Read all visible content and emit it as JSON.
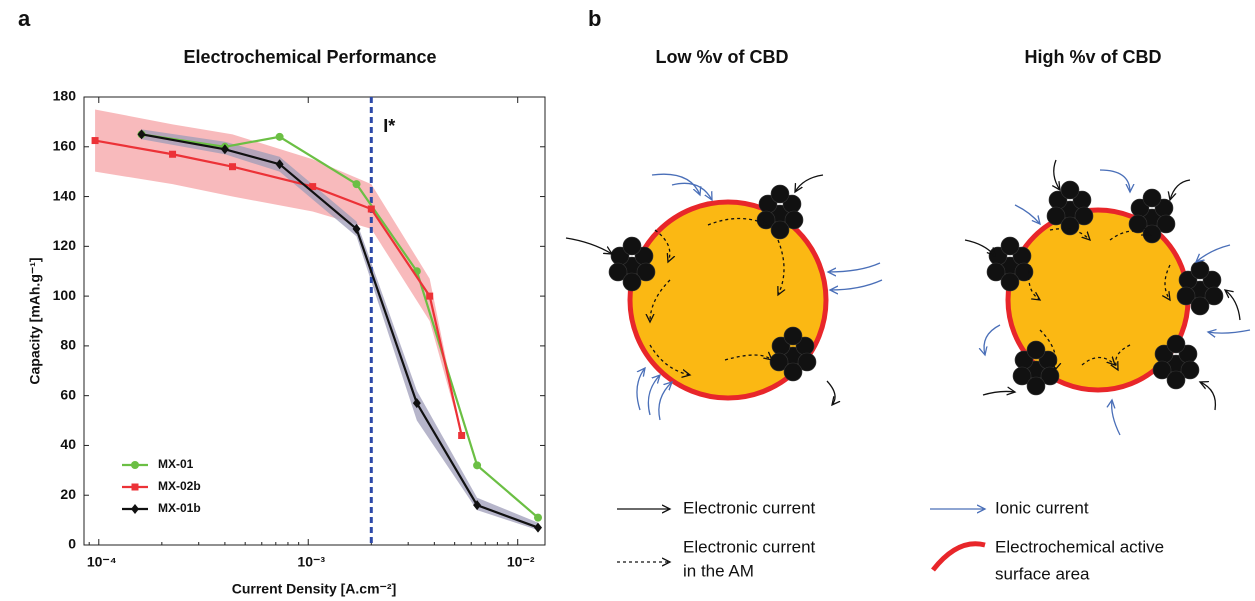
{
  "chart_data": {
    "type": "line",
    "panel_label": "a",
    "title": "Electrochemical Performance",
    "x_label": "Current Density [A.cm⁻²]",
    "y_label": "Capacity [mAh.g⁻¹]",
    "log_x": true,
    "xlim": [
      8.5e-05,
      0.0135
    ],
    "xticks": [
      {
        "value": 0.0001,
        "label": "10⁻⁴"
      },
      {
        "value": 0.001,
        "label": "10⁻³"
      },
      {
        "value": 0.01,
        "label": "10⁻²"
      }
    ],
    "ylim": [
      0,
      180
    ],
    "yticks": [
      0,
      20,
      40,
      60,
      80,
      100,
      120,
      140,
      160,
      180
    ],
    "legend": "lower left",
    "vline": {
      "x": 0.002,
      "label": "I*",
      "color": "#2e4aa8"
    },
    "series": [
      {
        "name": "MX-01",
        "color": "#6bbf44",
        "marker": "circle",
        "x": [
          0.00016,
          0.0004,
          0.00073,
          0.0017,
          0.0033,
          0.0064,
          0.0125
        ],
        "values": [
          165,
          160,
          164,
          145,
          110,
          32,
          11
        ]
      },
      {
        "name": "MX-02b",
        "color": "#ec3237",
        "marker": "square",
        "band_color": "#f5a3a6",
        "x": [
          9.6e-05,
          0.000225,
          0.000435,
          0.00105,
          0.002,
          0.0038,
          0.0054
        ],
        "values": [
          162.5,
          157,
          152,
          144,
          135,
          100,
          44
        ],
        "upper": [
          175,
          169,
          165,
          155,
          145,
          107,
          44
        ],
        "lower": [
          150,
          145,
          140,
          134,
          127,
          90,
          44
        ]
      },
      {
        "name": "MX-01b",
        "color": "#111111",
        "marker": "diamond",
        "band_color": "#9d9cb8",
        "x": [
          0.00016,
          0.0004,
          0.00073,
          0.0017,
          0.0033,
          0.0064,
          0.0125
        ],
        "values": [
          165,
          159,
          153,
          127,
          57,
          16,
          7
        ],
        "upper": [
          167,
          162,
          156,
          130,
          62,
          19,
          9
        ],
        "lower": [
          163,
          157,
          150,
          124,
          50,
          14,
          6
        ]
      }
    ]
  },
  "diagram": {
    "panel_label": "b",
    "titles": [
      "Low %v of CBD",
      "High %v of CBD"
    ],
    "legend": [
      {
        "lines": [
          "Electronic current"
        ]
      },
      {
        "lines": [
          "Ionic current"
        ]
      },
      {
        "lines": [
          "Electronic current",
          "in the AM"
        ]
      },
      {
        "lines": [
          "Electrochemical active",
          "surface area"
        ]
      }
    ]
  }
}
